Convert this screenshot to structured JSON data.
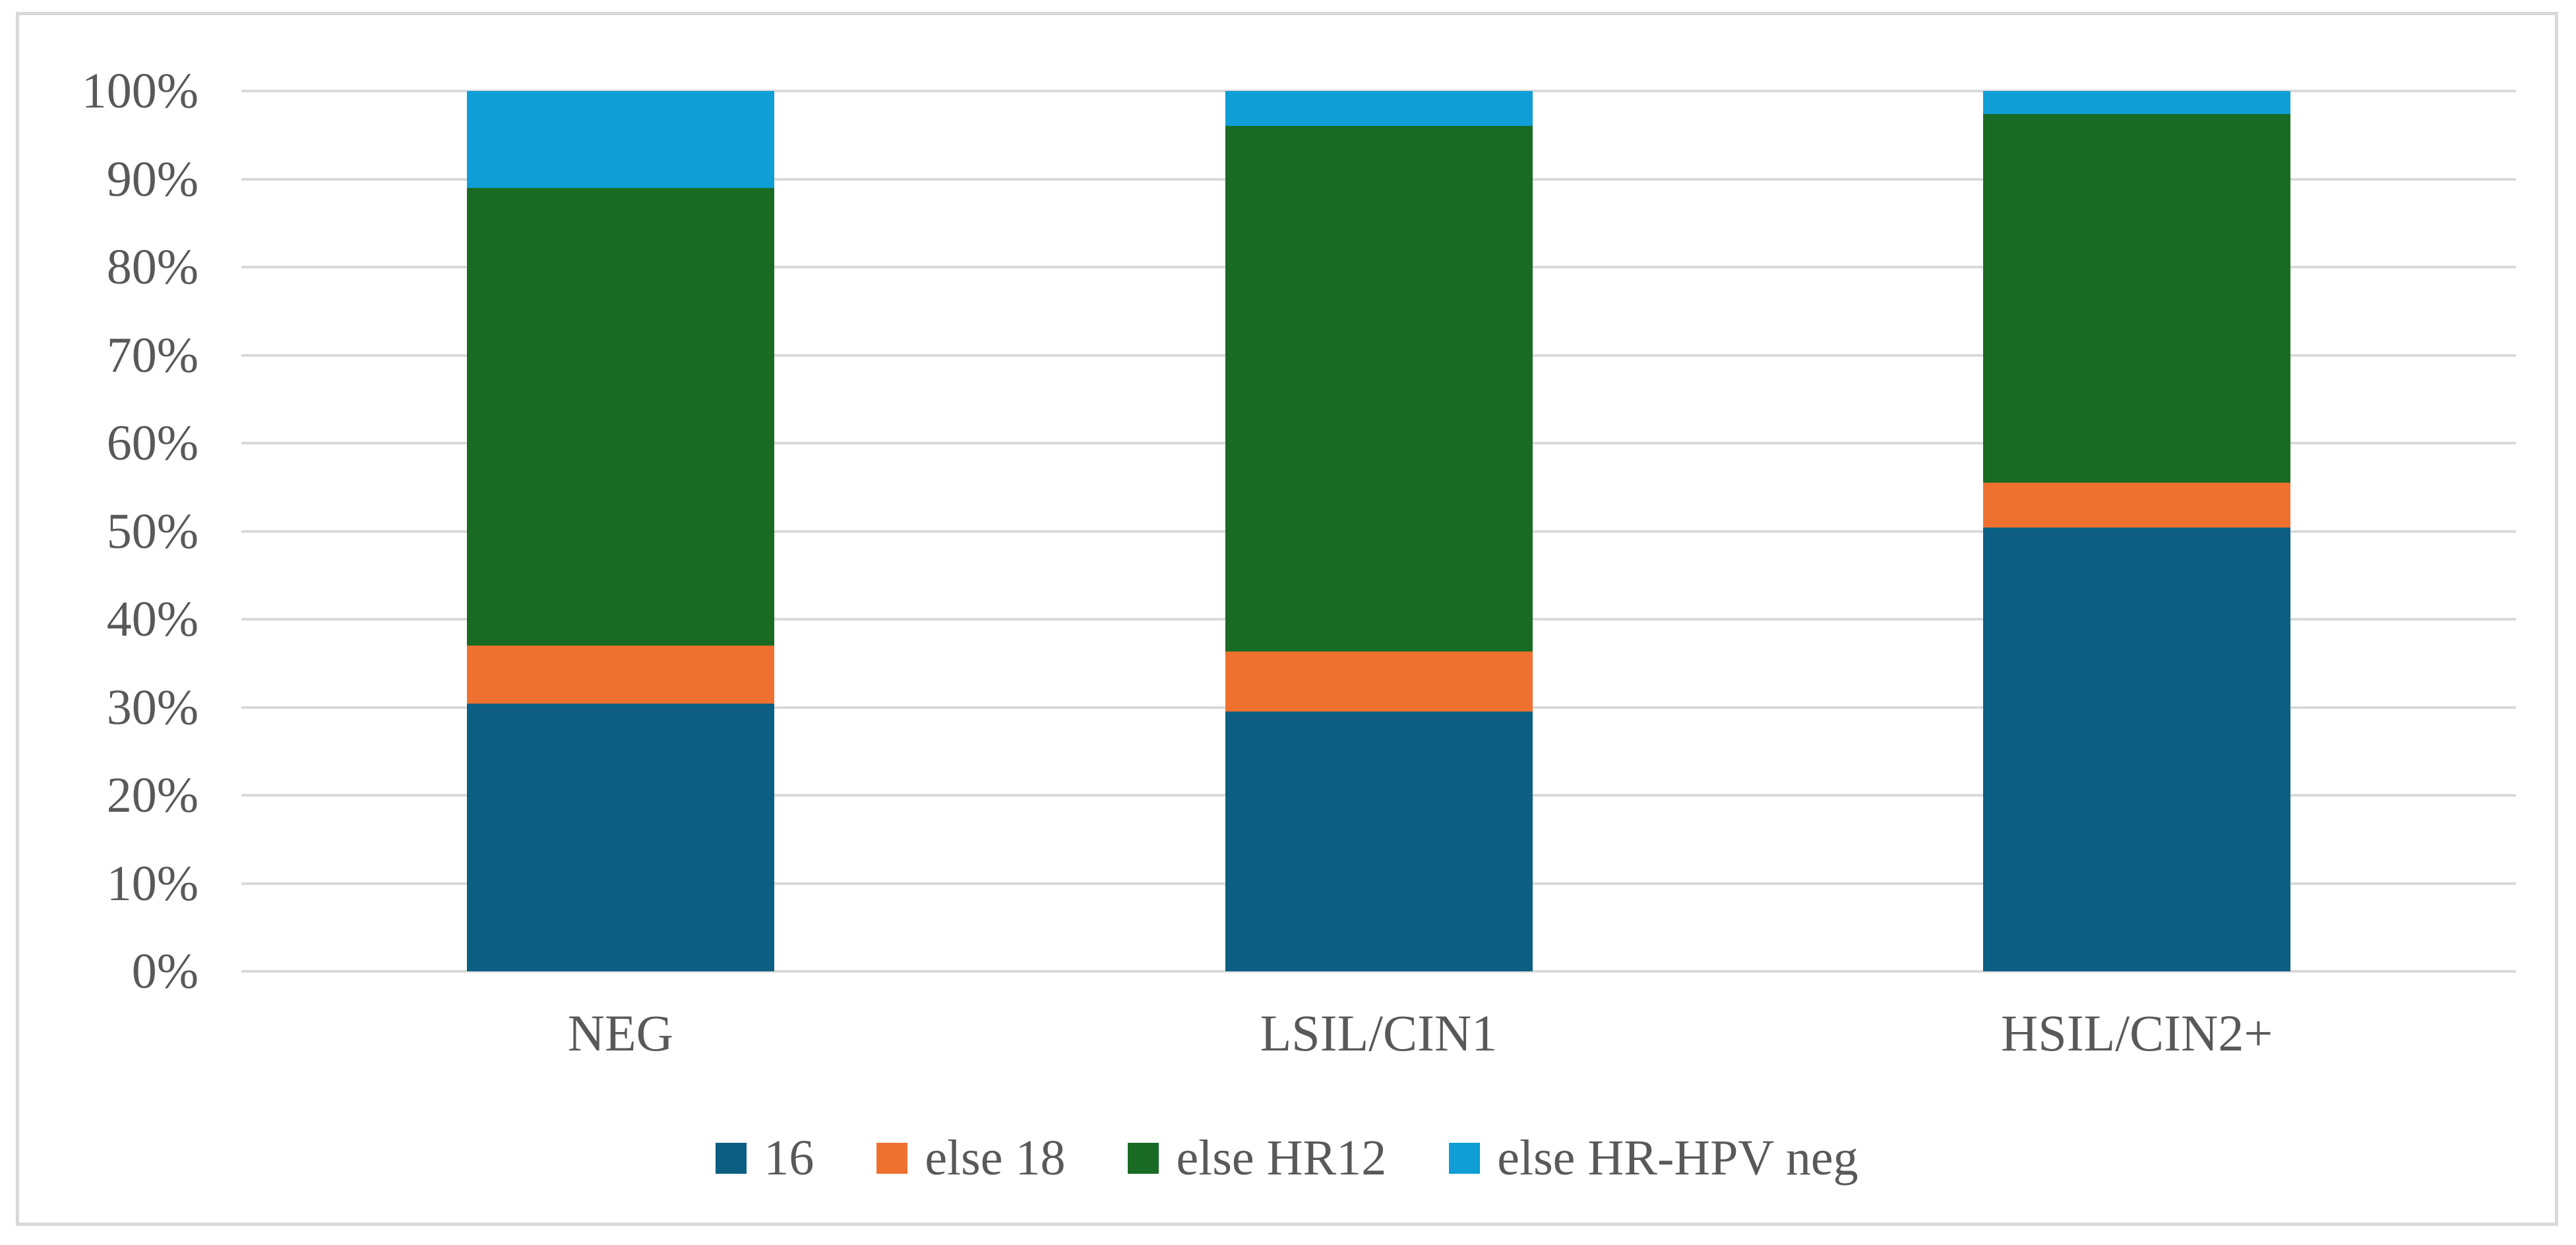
{
  "chart_data": {
    "type": "bar",
    "subtype": "stacked-100-percent",
    "title": "",
    "xlabel": "",
    "ylabel": "",
    "categories": [
      "NEG",
      "LSIL/CIN1",
      "HSIL/CIN2+"
    ],
    "series": [
      {
        "name": "16",
        "color": "#0C5F82",
        "values": [
          30.4,
          29.5,
          50.4
        ]
      },
      {
        "name": "else 18",
        "color": "#EF7130",
        "values": [
          6.6,
          6.8,
          5.1
        ]
      },
      {
        "name": "else HR12",
        "color": "#196B24",
        "values": [
          52.0,
          59.7,
          41.9
        ]
      },
      {
        "name": "else HR-HPV neg",
        "color": "#0F9ED5",
        "values": [
          11.0,
          4.0,
          2.6
        ]
      }
    ],
    "ylim": [
      0,
      100
    ],
    "y_tick_labels": [
      "0%",
      "10%",
      "20%",
      "30%",
      "40%",
      "50%",
      "60%",
      "70%",
      "80%",
      "90%",
      "100%"
    ],
    "grid": true,
    "legend_position": "bottom"
  },
  "styles": {
    "text_color": "#595959",
    "gridline_color": "#D9D9D9",
    "frame_border_color": "#D9D9D9",
    "background_color": "#FFFFFF"
  }
}
